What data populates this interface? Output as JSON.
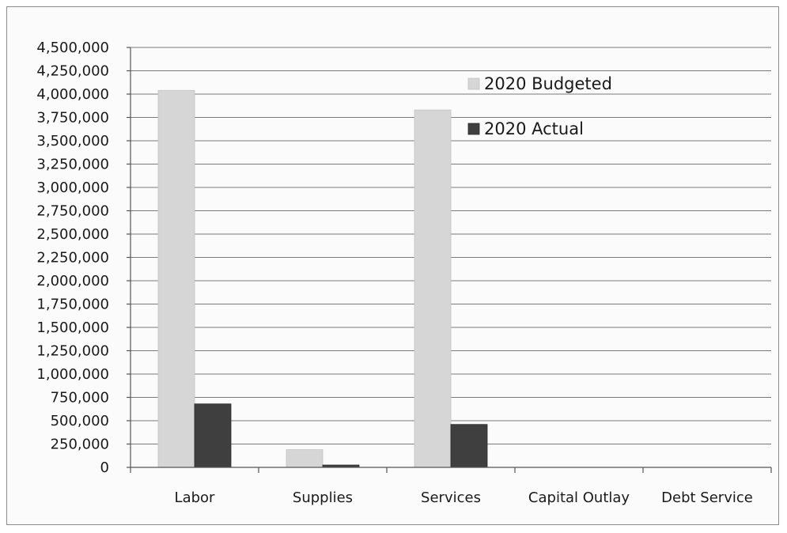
{
  "chart_data": {
    "type": "bar",
    "categories": [
      "Labor",
      "Supplies",
      "Services",
      "Capital Outlay",
      "Debt Service"
    ],
    "series": [
      {
        "name": "2020 Budgeted",
        "values": [
          4040000,
          190000,
          3830000,
          0,
          0
        ],
        "color": "#d6d6d6"
      },
      {
        "name": "2020 Actual",
        "values": [
          680000,
          25000,
          460000,
          0,
          0
        ],
        "color": "#3f3f3f"
      }
    ],
    "ylim": [
      0,
      4500000
    ],
    "ytick_step": 250000,
    "ytick_labels": [
      "0",
      "250,000",
      "500,000",
      "750,000",
      "1,000,000",
      "1,250,000",
      "1,500,000",
      "1,750,000",
      "2,000,000",
      "2,250,000",
      "2,500,000",
      "2,750,000",
      "3,000,000",
      "3,250,000",
      "3,500,000",
      "3,750,000",
      "4,000,000",
      "4,250,000",
      "4,500,000"
    ],
    "title": "",
    "xlabel": "",
    "ylabel": "",
    "grid": true,
    "legend_position": "top-right"
  }
}
